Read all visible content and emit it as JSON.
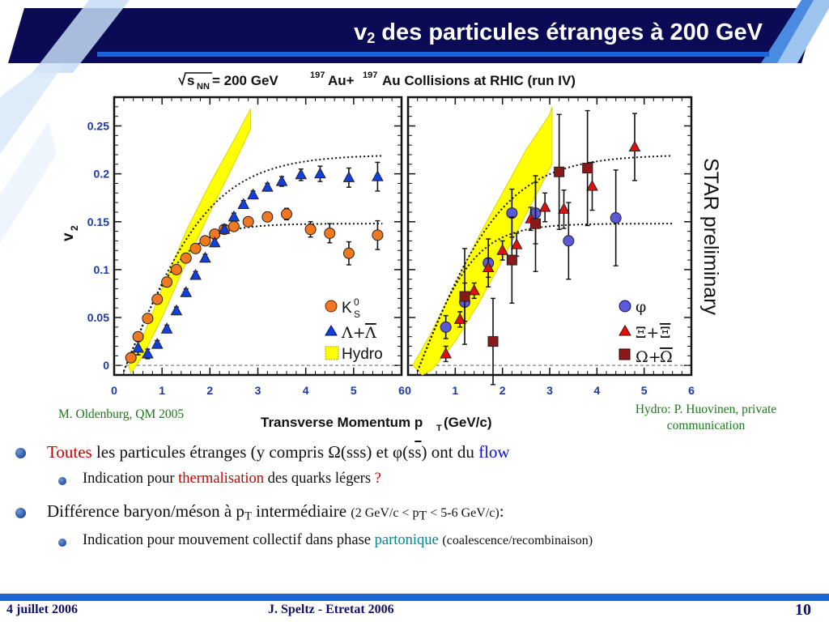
{
  "header": {
    "title_main": "v",
    "title_sub": "2",
    "title_rest": " des particules étranges à 200 GeV"
  },
  "chart_data": [
    {
      "type": "scatter",
      "panel": "left",
      "title": "√sNN = 200 GeV 197Au+197Au Collisions at RHIC (run IV)",
      "xlabel": "Transverse Momentum pT (GeV/c)",
      "ylabel": "v2",
      "xlim": [
        0,
        6
      ],
      "ylim": [
        -0.01,
        0.28
      ],
      "xticks": [
        "0",
        "1",
        "2",
        "3",
        "4",
        "5",
        "6"
      ],
      "yticks": [
        "0",
        "0.05",
        "0.1",
        "0.15",
        "0.2",
        "0.25"
      ],
      "legend_position": "bottom-right",
      "series": [
        {
          "name": "K0S",
          "marker": "circle",
          "color": "#f07820",
          "x": [
            0.35,
            0.5,
            0.7,
            0.9,
            1.1,
            1.3,
            1.5,
            1.7,
            1.9,
            2.1,
            2.3,
            2.5,
            2.8,
            3.2,
            3.6,
            4.1,
            4.5,
            4.9,
            5.5
          ],
          "y": [
            0.008,
            0.03,
            0.049,
            0.069,
            0.087,
            0.1,
            0.112,
            0.122,
            0.13,
            0.137,
            0.142,
            0.145,
            0.15,
            0.155,
            0.158,
            0.142,
            0.138,
            0.117,
            0.136
          ],
          "err": [
            0.004,
            0.004,
            0.004,
            0.004,
            0.004,
            0.004,
            0.004,
            0.004,
            0.004,
            0.004,
            0.004,
            0.004,
            0.004,
            0.005,
            0.006,
            0.008,
            0.01,
            0.012,
            0.015
          ]
        },
        {
          "name": "Λ+Λ̄",
          "marker": "triangle",
          "color": "#1040e0",
          "x": [
            0.5,
            0.7,
            0.9,
            1.1,
            1.3,
            1.5,
            1.7,
            1.9,
            2.1,
            2.3,
            2.5,
            2.7,
            2.9,
            3.2,
            3.5,
            3.9,
            4.3,
            4.9,
            5.5
          ],
          "y": [
            0.018,
            0.012,
            0.022,
            0.038,
            0.057,
            0.076,
            0.094,
            0.112,
            0.128,
            0.142,
            0.155,
            0.168,
            0.178,
            0.186,
            0.192,
            0.199,
            0.2,
            0.196,
            0.197
          ],
          "err": [
            0.007,
            0.005,
            0.004,
            0.004,
            0.004,
            0.004,
            0.004,
            0.004,
            0.004,
            0.004,
            0.004,
            0.004,
            0.004,
            0.004,
            0.005,
            0.006,
            0.008,
            0.01,
            0.015
          ]
        }
      ]
    },
    {
      "type": "scatter",
      "panel": "right",
      "xlabel": "Transverse Momentum pT (GeV/c)",
      "xlim": [
        0,
        6
      ],
      "ylim": [
        -0.01,
        0.28
      ],
      "xticks": [
        "0",
        "1",
        "2",
        "3",
        "4",
        "5",
        "6"
      ],
      "legend_position": "bottom-right",
      "series": [
        {
          "name": "φ",
          "marker": "circle",
          "color": "#5a5ad8",
          "x": [
            0.8,
            1.2,
            1.7,
            2.2,
            2.7,
            3.4,
            4.4
          ],
          "y": [
            0.04,
            0.066,
            0.107,
            0.159,
            0.159,
            0.13,
            0.154
          ],
          "err": [
            0.012,
            0.02,
            0.025,
            0.025,
            0.032,
            0.04,
            0.05
          ]
        },
        {
          "name": "Ξ+Ξ̄",
          "marker": "triangle",
          "color": "#e01010",
          "x": [
            0.8,
            1.1,
            1.4,
            1.7,
            2.0,
            2.3,
            2.6,
            2.9,
            3.3,
            3.9,
            4.8
          ],
          "y": [
            0.012,
            0.048,
            0.078,
            0.102,
            0.12,
            0.126,
            0.153,
            0.165,
            0.163,
            0.187,
            0.228
          ],
          "err": [
            0.008,
            0.008,
            0.008,
            0.01,
            0.01,
            0.012,
            0.012,
            0.015,
            0.02,
            0.025,
            0.035
          ]
        },
        {
          "name": "Ω+Ω̄",
          "marker": "square",
          "color": "#8a1a1a",
          "x": [
            1.2,
            1.8,
            2.2,
            2.7,
            3.2,
            3.8
          ],
          "y": [
            0.072,
            0.025,
            0.11,
            0.148,
            0.202,
            0.206
          ],
          "err": [
            0.05,
            0.045,
            0.045,
            0.05,
            0.06,
            0.06
          ]
        }
      ]
    }
  ],
  "legend": {
    "left": {
      "k0s": "K",
      "k0s_sup": "0",
      "k0s_sub": "S",
      "lambda": "Λ+",
      "lambda_bar": "Λ",
      "hydro": "Hydro"
    },
    "right": {
      "phi": "φ",
      "xi": "Ξ+",
      "xi_bar": "Ξ",
      "omega": "Ω+",
      "omega_bar": "Ω"
    }
  },
  "figure_title": {
    "sqrt": "s",
    "sqrt_sub": "NN",
    "energy": " = 200 GeV ",
    "a1": "197",
    "au1": "Au+",
    "a2": "197",
    "au2": "Au Collisions at RHIC (run IV)"
  },
  "axis": {
    "ylabel": "v",
    "ylabel_sub": "2",
    "xlabel": "Transverse Momentum p",
    "xlabel_sub": "T",
    "xlabel_unit": " (GeV/c)"
  },
  "star_label": "STAR preliminary",
  "captions": {
    "left": "M. Oldenburg, QM 2005",
    "right_line1": "Hydro: P. Huovinen, private",
    "right_line2": "communication"
  },
  "bullets": [
    {
      "parts": [
        {
          "t": "Toutes",
          "c": "red"
        },
        {
          "t": " les particules étranges (y compris Ω(sss) et φ(s"
        },
        {
          "t": "s",
          "c": "overline"
        },
        {
          "t": ") ont du "
        },
        {
          "t": "flow",
          "c": "blue"
        }
      ]
    },
    {
      "parts": [
        {
          "t": "Indication pour "
        },
        {
          "t": "thermalisation",
          "c": "red"
        },
        {
          "t": " des quarks légers "
        },
        {
          "t": "?",
          "c": "red"
        }
      ]
    },
    {
      "parts": [
        {
          "t": "Différence baryon/méson à p"
        },
        {
          "t": "T",
          "c": "sub"
        },
        {
          "t": " intermédiaire "
        },
        {
          "t": "(2 GeV/c < p",
          "c": "small"
        },
        {
          "t": "T",
          "c": "sub small"
        },
        {
          "t": " < 5-6 GeV/c)",
          "c": "small"
        },
        {
          "t": ":"
        }
      ]
    },
    {
      "parts": [
        {
          "t": "Indication pour mouvement collectif dans phase "
        },
        {
          "t": "partonique",
          "c": "teal"
        },
        {
          "t": " "
        },
        {
          "t": "(coalescence/recombinaison)",
          "c": "small"
        }
      ]
    }
  ],
  "footer": {
    "date": "4 juillet 2006",
    "author": "J. Speltz - Etretat 2006",
    "page": "10"
  }
}
